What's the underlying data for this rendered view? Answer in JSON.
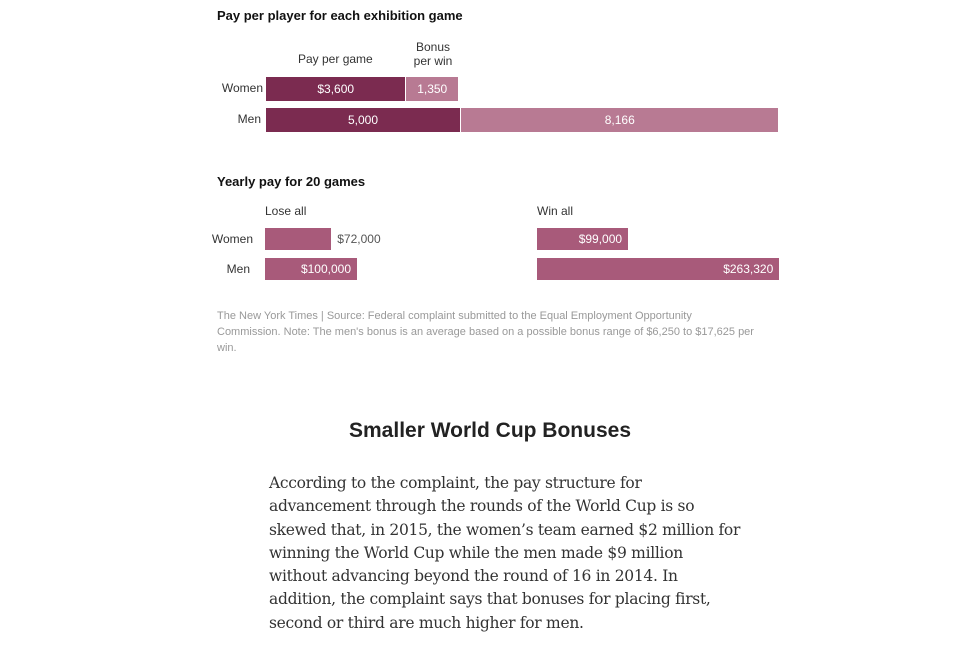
{
  "chart_data": [
    {
      "type": "bar",
      "stacked": true,
      "orientation": "horizontal",
      "title": "Pay per player for each exhibition game",
      "categories": [
        "Women",
        "Men"
      ],
      "series": [
        {
          "name": "Pay per game",
          "values": [
            3600,
            5000
          ],
          "labels": [
            "$3,600",
            "5,000"
          ],
          "color": "#7b2b50"
        },
        {
          "name": "Bonus per win",
          "values": [
            1350,
            8166
          ],
          "labels": [
            "1,350",
            "8,166"
          ],
          "color": "#b87a93"
        }
      ],
      "series_header": [
        "Pay per game",
        "Bonus per win"
      ]
    },
    {
      "type": "bar",
      "orientation": "horizontal",
      "title": "Yearly pay for 20 games",
      "categories": [
        "Women",
        "Men"
      ],
      "panels": [
        {
          "name": "Lose all",
          "values": [
            72000,
            100000
          ],
          "labels": [
            "$72,000",
            "$100,000"
          ]
        },
        {
          "name": "Win all",
          "values": [
            99000,
            263320
          ],
          "labels": [
            "$99,000",
            "$263,320"
          ]
        }
      ],
      "color": "#a85a7a"
    }
  ],
  "source_note": "The New York Times | Source: Federal complaint submitted to the Equal Employment Opportunity Commission. Note: The men's bonus is an average based on a possible bonus range of $6,250 to $17,625 per win.",
  "article": {
    "heading": "Smaller World Cup Bonuses",
    "paragraph_lines": [
      "According to the complaint, the pay structure for",
      "advancement through the rounds of the World Cup is so",
      "skewed that, in 2015, the women’s team earned $2 million for",
      "winning the World Cup while the men made $9 million",
      "without advancing beyond the round of 16 in 2014. In",
      "addition, the complaint says that bonuses for placing first,",
      "second or third are much higher for men."
    ]
  }
}
